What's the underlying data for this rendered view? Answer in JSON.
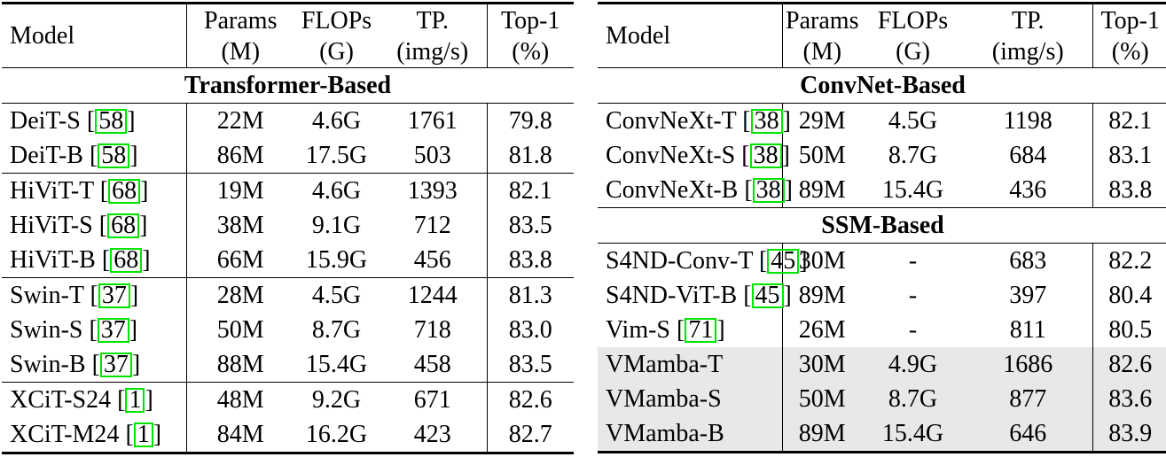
{
  "page": {
    "background": "#ffffff",
    "text_color": "#000000"
  },
  "styles": {
    "citation_border_color": "#00e400",
    "highlight_row_bg": "#e8e8e8",
    "rule_color": "#000000"
  },
  "citation_format": {
    "open": "[",
    "close": "]"
  },
  "tables": [
    {
      "name": "left",
      "header": {
        "model_label": "Model",
        "columns": [
          {
            "line1": "Params",
            "line2": "(M)"
          },
          {
            "line1": "FLOPs",
            "line2": "(G)"
          },
          {
            "line1": "TP.",
            "line2": "(img/s)"
          },
          {
            "line1": "Top-1",
            "line2": "(%)"
          }
        ]
      },
      "sections": [
        {
          "title": "Transformer-Based",
          "rows": [
            {
              "model": "DeiT-S",
              "cite": "58",
              "params": "22M",
              "flops": "4.6G",
              "tp": "1761",
              "top1": "79.8"
            },
            {
              "model": "DeiT-B",
              "cite": "58",
              "params": "86M",
              "flops": "17.5G",
              "tp": "503",
              "top1": "81.8"
            },
            {
              "model": "HiViT-T",
              "cite": "68",
              "params": "19M",
              "flops": "4.6G",
              "tp": "1393",
              "top1": "82.1",
              "rule_above": true
            },
            {
              "model": "HiViT-S",
              "cite": "68",
              "params": "38M",
              "flops": "9.1G",
              "tp": "712",
              "top1": "83.5"
            },
            {
              "model": "HiViT-B",
              "cite": "68",
              "params": "66M",
              "flops": "15.9G",
              "tp": "456",
              "top1": "83.8"
            },
            {
              "model": "Swin-T",
              "cite": "37",
              "params": "28M",
              "flops": "4.5G",
              "tp": "1244",
              "top1": "81.3",
              "rule_above": true
            },
            {
              "model": "Swin-S",
              "cite": "37",
              "params": "50M",
              "flops": "8.7G",
              "tp": "718",
              "top1": "83.0"
            },
            {
              "model": "Swin-B",
              "cite": "37",
              "params": "88M",
              "flops": "15.4G",
              "tp": "458",
              "top1": "83.5"
            },
            {
              "model": "XCiT-S24",
              "cite": "1",
              "params": "48M",
              "flops": "9.2G",
              "tp": "671",
              "top1": "82.6",
              "rule_above": true
            },
            {
              "model": "XCiT-M24",
              "cite": "1",
              "params": "84M",
              "flops": "16.2G",
              "tp": "423",
              "top1": "82.7"
            }
          ]
        }
      ]
    },
    {
      "name": "right",
      "header": {
        "model_label": "Model",
        "columns": [
          {
            "line1": "Params",
            "line2": "(M)"
          },
          {
            "line1": "FLOPs",
            "line2": "(G)"
          },
          {
            "line1": "TP.",
            "line2": "(img/s)"
          },
          {
            "line1": "Top-1",
            "line2": "(%)"
          }
        ]
      },
      "sections": [
        {
          "title": "ConvNet-Based",
          "rows": [
            {
              "model": "ConvNeXt-T",
              "cite": "38",
              "params": "29M",
              "flops": "4.5G",
              "tp": "1198",
              "top1": "82.1"
            },
            {
              "model": "ConvNeXt-S",
              "cite": "38",
              "params": "50M",
              "flops": "8.7G",
              "tp": "684",
              "top1": "83.1"
            },
            {
              "model": "ConvNeXt-B",
              "cite": "38",
              "params": "89M",
              "flops": "15.4G",
              "tp": "436",
              "top1": "83.8"
            }
          ]
        },
        {
          "title": "SSM-Based",
          "rows": [
            {
              "model": "S4ND-Conv-T",
              "cite": "45",
              "params": "30M",
              "flops": "-",
              "tp": "683",
              "top1": "82.2"
            },
            {
              "model": "S4ND-ViT-B",
              "cite": "45",
              "params": "89M",
              "flops": "-",
              "tp": "397",
              "top1": "80.4"
            },
            {
              "model": "Vim-S",
              "cite": "71",
              "params": "26M",
              "flops": "-",
              "tp": "811",
              "top1": "80.5"
            },
            {
              "model": "VMamba-T",
              "cite": null,
              "params": "30M",
              "flops": "4.9G",
              "tp": "1686",
              "top1": "82.6",
              "highlight": true
            },
            {
              "model": "VMamba-S",
              "cite": null,
              "params": "50M",
              "flops": "8.7G",
              "tp": "877",
              "top1": "83.6",
              "highlight": true
            },
            {
              "model": "VMamba-B",
              "cite": null,
              "params": "89M",
              "flops": "15.4G",
              "tp": "646",
              "top1": "83.9",
              "highlight": true
            }
          ]
        }
      ]
    }
  ]
}
